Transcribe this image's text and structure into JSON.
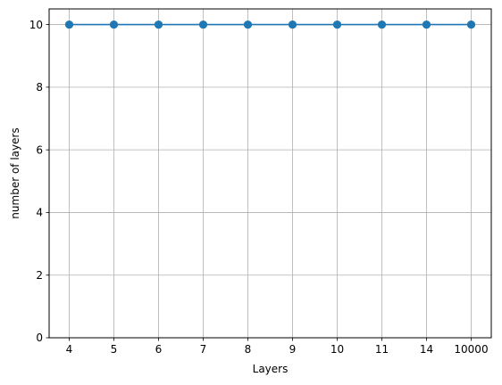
{
  "chart_data": {
    "type": "line",
    "categories": [
      "4",
      "5",
      "6",
      "7",
      "8",
      "9",
      "10",
      "11",
      "14",
      "10000"
    ],
    "series": [
      {
        "values": [
          10,
          10,
          10,
          10,
          10,
          10,
          10,
          10,
          10,
          10
        ],
        "color": "#1f77b4",
        "marker": "circle"
      }
    ],
    "xlabel": "Layers",
    "ylabel": "number of layers",
    "ylim": [
      0,
      10.5
    ],
    "yticks": [
      0,
      2,
      4,
      6,
      8,
      10
    ],
    "grid": true
  }
}
